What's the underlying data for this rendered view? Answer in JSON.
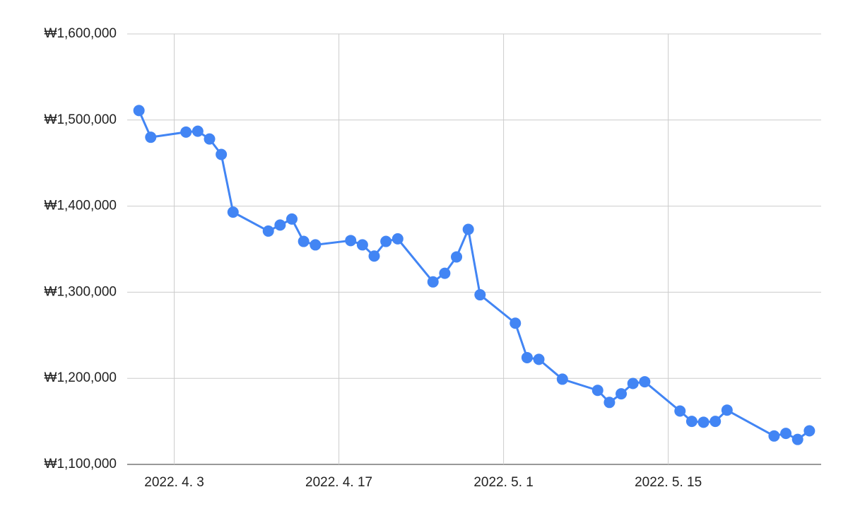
{
  "chart_data": {
    "type": "line",
    "x": [
      "2022-03-31",
      "2022-04-01",
      "2022-04-04",
      "2022-04-05",
      "2022-04-06",
      "2022-04-07",
      "2022-04-08",
      "2022-04-11",
      "2022-04-12",
      "2022-04-13",
      "2022-04-14",
      "2022-04-15",
      "2022-04-18",
      "2022-04-19",
      "2022-04-20",
      "2022-04-21",
      "2022-04-22",
      "2022-04-25",
      "2022-04-26",
      "2022-04-27",
      "2022-04-28",
      "2022-04-29",
      "2022-05-02",
      "2022-05-03",
      "2022-05-04",
      "2022-05-06",
      "2022-05-09",
      "2022-05-10",
      "2022-05-11",
      "2022-05-12",
      "2022-05-13",
      "2022-05-16",
      "2022-05-17",
      "2022-05-18",
      "2022-05-19",
      "2022-05-20",
      "2022-05-24",
      "2022-05-25",
      "2022-05-26",
      "2022-05-27"
    ],
    "values": [
      1511000,
      1480000,
      1486000,
      1487000,
      1478000,
      1460000,
      1393000,
      1371000,
      1378000,
      1385000,
      1359000,
      1355000,
      1360000,
      1355000,
      1342000,
      1359000,
      1362000,
      1312000,
      1322000,
      1341000,
      1373000,
      1297000,
      1264000,
      1224000,
      1222000,
      1199000,
      1186000,
      1172000,
      1182000,
      1194000,
      1196000,
      1162000,
      1150000,
      1149000,
      1150000,
      1163000,
      1133000,
      1136000,
      1129000,
      1139000
    ],
    "color": "#4285f4",
    "xlim": [
      "2022-03-30",
      "2022-05-28"
    ],
    "xticks": [
      {
        "value": "2022-04-03",
        "label": "2022. 4. 3"
      },
      {
        "value": "2022-04-17",
        "label": "2022. 4. 17"
      },
      {
        "value": "2022-05-01",
        "label": "2022. 5. 1"
      },
      {
        "value": "2022-05-15",
        "label": "2022. 5. 15"
      }
    ],
    "ylim": [
      1100000,
      1600000
    ],
    "yticks": [
      {
        "value": 1100000,
        "label": "₩1,100,000"
      },
      {
        "value": 1200000,
        "label": "₩1,200,000"
      },
      {
        "value": 1300000,
        "label": "₩1,300,000"
      },
      {
        "value": 1400000,
        "label": "₩1,400,000"
      },
      {
        "value": 1500000,
        "label": "₩1,500,000"
      },
      {
        "value": 1600000,
        "label": "₩1,600,000"
      }
    ],
    "grid": true
  }
}
